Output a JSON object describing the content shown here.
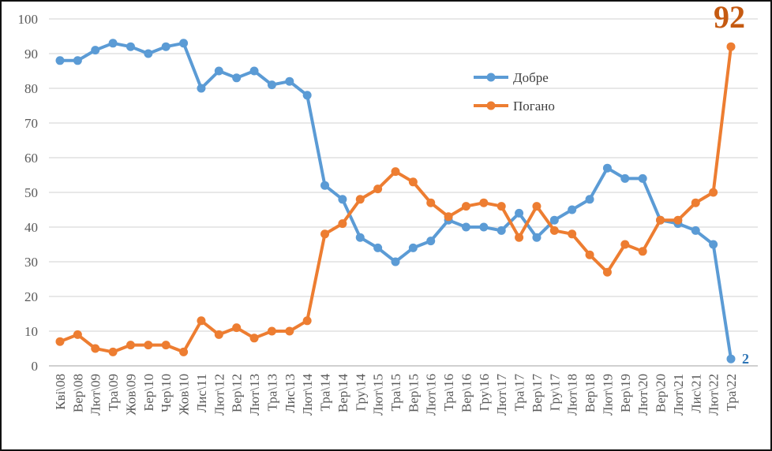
{
  "chart_data": {
    "type": "line",
    "title": "",
    "xlabel": "",
    "ylabel": "",
    "ylim": [
      0,
      100
    ],
    "yticks": [
      0,
      10,
      20,
      30,
      40,
      50,
      60,
      70,
      80,
      90,
      100
    ],
    "grid": true,
    "legend_placement": "top-right",
    "categories": [
      "Кві\\08",
      "Вер\\08",
      "Лют\\09",
      "Тра\\09",
      "Жов\\09",
      "Бер\\10",
      "Чер\\10",
      "Жов\\10",
      "Лис\\11",
      "Лют\\12",
      "Вер\\12",
      "Лют\\13",
      "Тра\\13",
      "Лис\\13",
      "Лют\\14",
      "Тра\\14",
      "Вер\\14",
      "Гру\\14",
      "Лют\\15",
      "Тра\\15",
      "Вер\\15",
      "Лют\\16",
      "Тра\\16",
      "Вер\\16",
      "Гру\\16",
      "Лют\\17",
      "Тра\\17",
      "Вер\\17",
      "Гру\\17",
      "Лют\\18",
      "Вер\\18",
      "Лют\\19",
      "Вер\\19",
      "Лют\\20",
      "Вер\\20",
      "Лют\\21",
      "Лис\\21",
      "Лют\\22",
      "Тра\\22"
    ],
    "series": [
      {
        "name": "Добре",
        "color": "#5B9BD5",
        "values": [
          88,
          88,
          91,
          93,
          92,
          90,
          92,
          93,
          80,
          85,
          83,
          85,
          81,
          82,
          78,
          52,
          48,
          37,
          34,
          30,
          34,
          36,
          42,
          40,
          40,
          39,
          44,
          37,
          42,
          45,
          48,
          57,
          54,
          54,
          42,
          41,
          39,
          35,
          2
        ]
      },
      {
        "name": "Погано",
        "color": "#ED7D31",
        "values": [
          7,
          9,
          5,
          4,
          6,
          6,
          6,
          4,
          13,
          9,
          11,
          8,
          10,
          10,
          13,
          38,
          41,
          48,
          51,
          56,
          53,
          47,
          43,
          46,
          47,
          46,
          37,
          46,
          39,
          38,
          32,
          27,
          35,
          33,
          42,
          42,
          47,
          50,
          92
        ]
      }
    ],
    "annotations": [
      {
        "text": "92",
        "series": "Погано",
        "category": "Тра\\22",
        "color": "#C55A11"
      },
      {
        "text": "2",
        "series": "Добре",
        "category": "Тра\\22",
        "color": "#2E75B6"
      }
    ]
  }
}
